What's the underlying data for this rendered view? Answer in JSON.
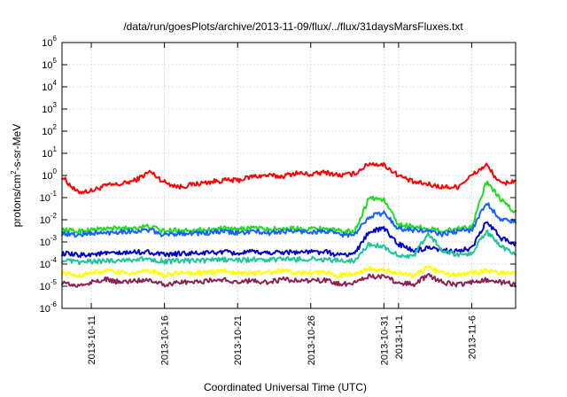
{
  "chart_data": {
    "type": "line",
    "title": "/data/run/goesPlots/archive/2013-11-09/flux/../flux/31daysMarsFluxes.txt",
    "xlabel": "Coordinated Universal Time (UTC)",
    "ylabel": {
      "base": "protons/cm",
      "sup": "2",
      "rest": "-s-sr-MeV"
    },
    "y_scale": "log",
    "ylim_exponent": [
      -6,
      6
    ],
    "y_ticks": [
      {
        "base": "10",
        "exp": "-6"
      },
      {
        "base": "10",
        "exp": "-5"
      },
      {
        "base": "10",
        "exp": "-4"
      },
      {
        "base": "10",
        "exp": "-3"
      },
      {
        "base": "10",
        "exp": "-2"
      },
      {
        "base": "10",
        "exp": "-1"
      },
      {
        "base": "10",
        "exp": "0"
      },
      {
        "base": "10",
        "exp": "1"
      },
      {
        "base": "10",
        "exp": "2"
      },
      {
        "base": "10",
        "exp": "3"
      },
      {
        "base": "10",
        "exp": "4"
      },
      {
        "base": "10",
        "exp": "5"
      },
      {
        "base": "10",
        "exp": "6"
      }
    ],
    "x_range_days": [
      "2013-10-09",
      "2013-11-09"
    ],
    "x_ticks": [
      "2013-10-11",
      "2013-10-16",
      "2013-10-21",
      "2013-10-26",
      "2013-10-31",
      "2013-11-1",
      "2013-11-6"
    ],
    "grid": true,
    "legend": "none",
    "series": [
      {
        "color": "#ff0000",
        "width": 2,
        "points": [
          [
            "2013-10-09",
            0.9
          ],
          [
            "2013-10-10",
            0.18
          ],
          [
            "2013-10-11",
            0.2
          ],
          [
            "2013-10-12",
            0.35
          ],
          [
            "2013-10-13",
            0.4
          ],
          [
            "2013-10-14",
            0.6
          ],
          [
            "2013-10-15",
            1.5
          ],
          [
            "2013-10-16",
            0.5
          ],
          [
            "2013-10-17",
            0.3
          ],
          [
            "2013-10-18",
            0.4
          ],
          [
            "2013-10-19",
            0.5
          ],
          [
            "2013-10-20",
            0.6
          ],
          [
            "2013-10-21",
            0.6
          ],
          [
            "2013-10-22",
            0.9
          ],
          [
            "2013-10-23",
            1.0
          ],
          [
            "2013-10-24",
            0.9
          ],
          [
            "2013-10-25",
            1.3
          ],
          [
            "2013-10-26",
            1.1
          ],
          [
            "2013-10-27",
            1.4
          ],
          [
            "2013-10-28",
            1.0
          ],
          [
            "2013-10-29",
            1.2
          ],
          [
            "2013-10-30",
            3.5
          ],
          [
            "2013-10-31",
            3.0
          ],
          [
            "2013-11-01",
            1.0
          ],
          [
            "2013-11-02",
            0.5
          ],
          [
            "2013-11-03",
            0.4
          ],
          [
            "2013-11-04",
            0.3
          ],
          [
            "2013-11-05",
            0.3
          ],
          [
            "2013-11-06",
            1.0
          ],
          [
            "2013-11-07",
            3.0
          ],
          [
            "2013-11-08",
            0.4
          ],
          [
            "2013-11-09",
            0.6
          ]
        ]
      },
      {
        "color": "#22dd22",
        "width": 2,
        "points": [
          [
            "2013-10-09",
            0.0035
          ],
          [
            "2013-10-10",
            0.003
          ],
          [
            "2013-10-11",
            0.0035
          ],
          [
            "2013-10-12",
            0.004
          ],
          [
            "2013-10-13",
            0.004
          ],
          [
            "2013-10-14",
            0.0045
          ],
          [
            "2013-10-15",
            0.005
          ],
          [
            "2013-10-16",
            0.003
          ],
          [
            "2013-10-17",
            0.0035
          ],
          [
            "2013-10-18",
            0.0035
          ],
          [
            "2013-10-19",
            0.0035
          ],
          [
            "2013-10-20",
            0.004
          ],
          [
            "2013-10-21",
            0.0035
          ],
          [
            "2013-10-22",
            0.0045
          ],
          [
            "2013-10-23",
            0.0035
          ],
          [
            "2013-10-24",
            0.004
          ],
          [
            "2013-10-25",
            0.004
          ],
          [
            "2013-10-26",
            0.004
          ],
          [
            "2013-10-27",
            0.004
          ],
          [
            "2013-10-28",
            0.003
          ],
          [
            "2013-10-29",
            0.003
          ],
          [
            "2013-10-30",
            0.1
          ],
          [
            "2013-10-31",
            0.08
          ],
          [
            "2013-11-01",
            0.006
          ],
          [
            "2013-11-02",
            0.005
          ],
          [
            "2013-11-03",
            0.004
          ],
          [
            "2013-11-04",
            0.003
          ],
          [
            "2013-11-05",
            0.004
          ],
          [
            "2013-11-06",
            0.005
          ],
          [
            "2013-11-07",
            0.5
          ],
          [
            "2013-11-08",
            0.08
          ],
          [
            "2013-11-09",
            0.02
          ]
        ]
      },
      {
        "color": "#1a5fff",
        "width": 2,
        "points": [
          [
            "2013-10-09",
            0.0025
          ],
          [
            "2013-10-10",
            0.002
          ],
          [
            "2013-10-11",
            0.0025
          ],
          [
            "2013-10-12",
            0.0025
          ],
          [
            "2013-10-13",
            0.003
          ],
          [
            "2013-10-14",
            0.003
          ],
          [
            "2013-10-15",
            0.0035
          ],
          [
            "2013-10-16",
            0.002
          ],
          [
            "2013-10-17",
            0.0025
          ],
          [
            "2013-10-18",
            0.0025
          ],
          [
            "2013-10-19",
            0.0025
          ],
          [
            "2013-10-20",
            0.003
          ],
          [
            "2013-10-21",
            0.0025
          ],
          [
            "2013-10-22",
            0.003
          ],
          [
            "2013-10-23",
            0.0025
          ],
          [
            "2013-10-24",
            0.003
          ],
          [
            "2013-10-25",
            0.003
          ],
          [
            "2013-10-26",
            0.0028
          ],
          [
            "2013-10-27",
            0.003
          ],
          [
            "2013-10-28",
            0.0022
          ],
          [
            "2013-10-29",
            0.002
          ],
          [
            "2013-10-30",
            0.015
          ],
          [
            "2013-10-31",
            0.02
          ],
          [
            "2013-11-01",
            0.004
          ],
          [
            "2013-11-02",
            0.0035
          ],
          [
            "2013-11-03",
            0.003
          ],
          [
            "2013-11-04",
            0.0022
          ],
          [
            "2013-11-05",
            0.003
          ],
          [
            "2013-11-06",
            0.0035
          ],
          [
            "2013-11-07",
            0.06
          ],
          [
            "2013-11-08",
            0.01
          ],
          [
            "2013-11-09",
            0.008
          ]
        ]
      },
      {
        "color": "#0000cc",
        "width": 2,
        "points": [
          [
            "2013-10-09",
            0.0003
          ],
          [
            "2013-10-10",
            0.00025
          ],
          [
            "2013-10-11",
            0.00028
          ],
          [
            "2013-10-12",
            0.0003
          ],
          [
            "2013-10-13",
            0.0003
          ],
          [
            "2013-10-14",
            0.00035
          ],
          [
            "2013-10-15",
            0.00035
          ],
          [
            "2013-10-16",
            0.00025
          ],
          [
            "2013-10-17",
            0.0003
          ],
          [
            "2013-10-18",
            0.0003
          ],
          [
            "2013-10-19",
            0.00032
          ],
          [
            "2013-10-20",
            0.00035
          ],
          [
            "2013-10-21",
            0.0003
          ],
          [
            "2013-10-22",
            0.00035
          ],
          [
            "2013-10-23",
            0.00032
          ],
          [
            "2013-10-24",
            0.00035
          ],
          [
            "2013-10-25",
            0.00035
          ],
          [
            "2013-10-26",
            0.00035
          ],
          [
            "2013-10-27",
            0.00035
          ],
          [
            "2013-10-28",
            0.00025
          ],
          [
            "2013-10-29",
            0.0003
          ],
          [
            "2013-10-30",
            0.003
          ],
          [
            "2013-10-31",
            0.004
          ],
          [
            "2013-11-01",
            0.0008
          ],
          [
            "2013-11-02",
            0.0004
          ],
          [
            "2013-11-03",
            0.0005
          ],
          [
            "2013-11-04",
            0.0004
          ],
          [
            "2013-11-05",
            0.0004
          ],
          [
            "2013-11-06",
            0.0005
          ],
          [
            "2013-11-07",
            0.008
          ],
          [
            "2013-11-08",
            0.0015
          ],
          [
            "2013-11-09",
            0.0008
          ]
        ]
      },
      {
        "color": "#22c49a",
        "width": 2,
        "points": [
          [
            "2013-10-09",
            0.00015
          ],
          [
            "2013-10-10",
            0.00012
          ],
          [
            "2013-10-11",
            0.00013
          ],
          [
            "2013-10-12",
            0.00014
          ],
          [
            "2013-10-13",
            0.00015
          ],
          [
            "2013-10-14",
            0.00016
          ],
          [
            "2013-10-15",
            0.00017
          ],
          [
            "2013-10-16",
            0.00013
          ],
          [
            "2013-10-17",
            0.00014
          ],
          [
            "2013-10-18",
            0.00014
          ],
          [
            "2013-10-19",
            0.00015
          ],
          [
            "2013-10-20",
            0.00016
          ],
          [
            "2013-10-21",
            0.00015
          ],
          [
            "2013-10-22",
            0.00016
          ],
          [
            "2013-10-23",
            0.00015
          ],
          [
            "2013-10-24",
            0.00017
          ],
          [
            "2013-10-25",
            0.00016
          ],
          [
            "2013-10-26",
            0.00017
          ],
          [
            "2013-10-27",
            0.00016
          ],
          [
            "2013-10-28",
            0.00014
          ],
          [
            "2013-10-29",
            0.00015
          ],
          [
            "2013-10-30",
            0.0008
          ],
          [
            "2013-10-31",
            0.0006
          ],
          [
            "2013-11-01",
            0.00025
          ],
          [
            "2013-11-02",
            0.0002
          ],
          [
            "2013-11-03",
            0.0025
          ],
          [
            "2013-11-04",
            0.0004
          ],
          [
            "2013-11-05",
            0.00025
          ],
          [
            "2013-11-06",
            0.0003
          ],
          [
            "2013-11-07",
            0.003
          ],
          [
            "2013-11-08",
            0.0006
          ],
          [
            "2013-11-09",
            0.0003
          ]
        ]
      },
      {
        "color": "#ffff00",
        "width": 2,
        "points": [
          [
            "2013-10-09",
            4e-05
          ],
          [
            "2013-10-10",
            3e-05
          ],
          [
            "2013-10-11",
            4e-05
          ],
          [
            "2013-10-12",
            5e-05
          ],
          [
            "2013-10-13",
            4e-05
          ],
          [
            "2013-10-14",
            4e-05
          ],
          [
            "2013-10-15",
            5e-05
          ],
          [
            "2013-10-16",
            3e-05
          ],
          [
            "2013-10-17",
            4e-05
          ],
          [
            "2013-10-18",
            4e-05
          ],
          [
            "2013-10-19",
            4e-05
          ],
          [
            "2013-10-20",
            5e-05
          ],
          [
            "2013-10-21",
            4e-05
          ],
          [
            "2013-10-22",
            4e-05
          ],
          [
            "2013-10-23",
            4e-05
          ],
          [
            "2013-10-24",
            5e-05
          ],
          [
            "2013-10-25",
            4e-05
          ],
          [
            "2013-10-26",
            4e-05
          ],
          [
            "2013-10-27",
            4e-05
          ],
          [
            "2013-10-28",
            3e-05
          ],
          [
            "2013-10-29",
            4e-05
          ],
          [
            "2013-10-30",
            6e-05
          ],
          [
            "2013-10-31",
            5e-05
          ],
          [
            "2013-11-01",
            4e-05
          ],
          [
            "2013-11-02",
            3e-05
          ],
          [
            "2013-11-03",
            7e-05
          ],
          [
            "2013-11-04",
            4e-05
          ],
          [
            "2013-11-05",
            3e-05
          ],
          [
            "2013-11-06",
            4e-05
          ],
          [
            "2013-11-07",
            5e-05
          ],
          [
            "2013-11-08",
            4e-05
          ],
          [
            "2013-11-09",
            4e-05
          ]
        ]
      },
      {
        "color": "#8b2252",
        "width": 2,
        "points": [
          [
            "2013-10-09",
            1.5e-05
          ],
          [
            "2013-10-10",
            1e-05
          ],
          [
            "2013-10-11",
            1.5e-05
          ],
          [
            "2013-10-12",
            2e-05
          ],
          [
            "2013-10-13",
            1.5e-05
          ],
          [
            "2013-10-14",
            1.8e-05
          ],
          [
            "2013-10-15",
            2e-05
          ],
          [
            "2013-10-16",
            1.2e-05
          ],
          [
            "2013-10-17",
            1.5e-05
          ],
          [
            "2013-10-18",
            1.5e-05
          ],
          [
            "2013-10-19",
            1.8e-05
          ],
          [
            "2013-10-20",
            2e-05
          ],
          [
            "2013-10-21",
            1.5e-05
          ],
          [
            "2013-10-22",
            1.8e-05
          ],
          [
            "2013-10-23",
            1.5e-05
          ],
          [
            "2013-10-24",
            2e-05
          ],
          [
            "2013-10-25",
            1.8e-05
          ],
          [
            "2013-10-26",
            1.8e-05
          ],
          [
            "2013-10-27",
            1.8e-05
          ],
          [
            "2013-10-28",
            1.2e-05
          ],
          [
            "2013-10-29",
            1.5e-05
          ],
          [
            "2013-10-30",
            3e-05
          ],
          [
            "2013-10-31",
            2.5e-05
          ],
          [
            "2013-11-01",
            1.5e-05
          ],
          [
            "2013-11-02",
            1.2e-05
          ],
          [
            "2013-11-03",
            3e-05
          ],
          [
            "2013-11-04",
            1.5e-05
          ],
          [
            "2013-11-05",
            1.2e-05
          ],
          [
            "2013-11-06",
            1.5e-05
          ],
          [
            "2013-11-07",
            2e-05
          ],
          [
            "2013-11-08",
            1.5e-05
          ],
          [
            "2013-11-09",
            1.2e-05
          ]
        ]
      }
    ]
  }
}
